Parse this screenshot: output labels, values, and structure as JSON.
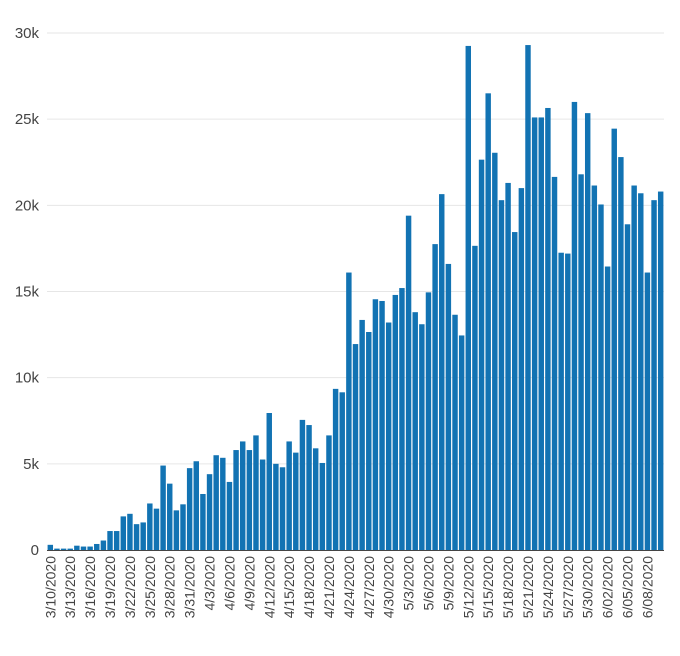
{
  "chart_data": {
    "type": "bar",
    "bar_color": "#1273b3",
    "grid": true,
    "ylim": [
      0,
      30000
    ],
    "yticks": [
      0,
      5000,
      10000,
      15000,
      20000,
      25000,
      30000
    ],
    "ytick_labels": [
      "0",
      "5k",
      "10k",
      "15k",
      "20k",
      "25k",
      "30k"
    ],
    "xtick_labels": [
      "3/10/2020",
      "3/13/2020",
      "3/16/2020",
      "3/19/2020",
      "3/22/2020",
      "3/25/2020",
      "3/28/2020",
      "3/31/2020",
      "4/3/2020",
      "4/6/2020",
      "4/9/2020",
      "4/12/2020",
      "4/15/2020",
      "4/18/2020",
      "4/21/2020",
      "4/24/2020",
      "4/27/2020",
      "4/30/2020",
      "5/3/2020",
      "5/6/2020",
      "5/9/2020",
      "5/12/2020",
      "5/15/2020",
      "5/18/2020",
      "5/21/2020",
      "5/24/2020",
      "5/27/2020",
      "5/30/2020",
      "6/02/2020",
      "6/05/2020",
      "6/08/2020"
    ],
    "xtick_every": 3,
    "categories": [
      "3/10/2020",
      "3/11/2020",
      "3/12/2020",
      "3/13/2020",
      "3/14/2020",
      "3/15/2020",
      "3/16/2020",
      "3/17/2020",
      "3/18/2020",
      "3/19/2020",
      "3/20/2020",
      "3/21/2020",
      "3/22/2020",
      "3/23/2020",
      "3/24/2020",
      "3/25/2020",
      "3/26/2020",
      "3/27/2020",
      "3/28/2020",
      "3/29/2020",
      "3/30/2020",
      "3/31/2020",
      "4/1/2020",
      "4/2/2020",
      "4/3/2020",
      "4/4/2020",
      "4/5/2020",
      "4/6/2020",
      "4/7/2020",
      "4/8/2020",
      "4/9/2020",
      "4/10/2020",
      "4/11/2020",
      "4/12/2020",
      "4/13/2020",
      "4/14/2020",
      "4/15/2020",
      "4/16/2020",
      "4/17/2020",
      "4/18/2020",
      "4/19/2020",
      "4/20/2020",
      "4/21/2020",
      "4/22/2020",
      "4/23/2020",
      "4/24/2020",
      "4/25/2020",
      "4/26/2020",
      "4/27/2020",
      "4/28/2020",
      "4/29/2020",
      "4/30/2020",
      "5/1/2020",
      "5/2/2020",
      "5/3/2020",
      "5/4/2020",
      "5/5/2020",
      "5/6/2020",
      "5/7/2020",
      "5/8/2020",
      "5/9/2020",
      "5/10/2020",
      "5/11/2020",
      "5/12/2020",
      "5/13/2020",
      "5/14/2020",
      "5/15/2020",
      "5/16/2020",
      "5/17/2020",
      "5/18/2020",
      "5/19/2020",
      "5/20/2020",
      "5/21/2020",
      "5/22/2020",
      "5/23/2020",
      "5/24/2020",
      "5/25/2020",
      "5/26/2020",
      "5/27/2020",
      "5/28/2020",
      "5/29/2020",
      "5/30/2020",
      "5/31/2020",
      "6/01/2020",
      "6/02/2020",
      "6/03/2020",
      "6/04/2020",
      "6/05/2020",
      "6/06/2020",
      "6/07/2020",
      "6/08/2020",
      "6/09/2020",
      "6/10/2020"
    ],
    "values": [
      300,
      80,
      80,
      80,
      250,
      200,
      200,
      350,
      550,
      1100,
      1100,
      1950,
      2100,
      1500,
      1600,
      2700,
      2400,
      4900,
      3850,
      2300,
      2650,
      4750,
      5150,
      3250,
      4400,
      5500,
      5350,
      3950,
      5800,
      6300,
      5800,
      6650,
      5250,
      7950,
      5000,
      4800,
      6300,
      5650,
      7550,
      7250,
      5900,
      5050,
      6650,
      9350,
      9150,
      16100,
      11950,
      13350,
      12650,
      14550,
      14450,
      13200,
      14800,
      15200,
      19400,
      13800,
      13100,
      14950,
      17750,
      20650,
      16600,
      13650,
      12450,
      29250,
      17650,
      22650,
      26500,
      23050,
      20300,
      21300,
      18450,
      21000,
      29300,
      25100,
      25100,
      25650,
      21650,
      17250,
      17200,
      26000,
      21800,
      25350,
      21150,
      20050,
      16450,
      24450,
      22800,
      18900,
      21150,
      20700,
      16100,
      20300,
      20800
    ]
  }
}
